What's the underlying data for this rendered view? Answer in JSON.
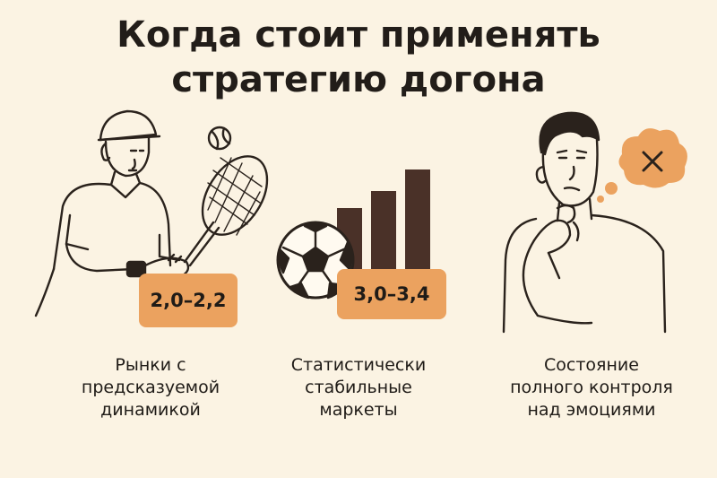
{
  "title": {
    "line1": "Когда стоит применять",
    "line2": "стратегию догона"
  },
  "panels": [
    {
      "badge": "2,0–2,2",
      "caption": [
        "Рынки с",
        "предсказуемой",
        "динамикой"
      ],
      "illustration": "tennis-player-icon"
    },
    {
      "badge": "3,0–3,4",
      "caption": [
        "Статистически",
        "стабильные",
        "маркеты"
      ],
      "illustration": "soccer-ball-bar-chart-icon"
    },
    {
      "badge": "",
      "caption": [
        "Состояние",
        "полного контроля",
        "над эмоциями"
      ],
      "illustration": "thinking-man-icon"
    }
  ],
  "colors": {
    "background": "#fbf3e3",
    "accent": "#eba25f",
    "bars": "#4a3128",
    "ink": "#1f1b17"
  }
}
